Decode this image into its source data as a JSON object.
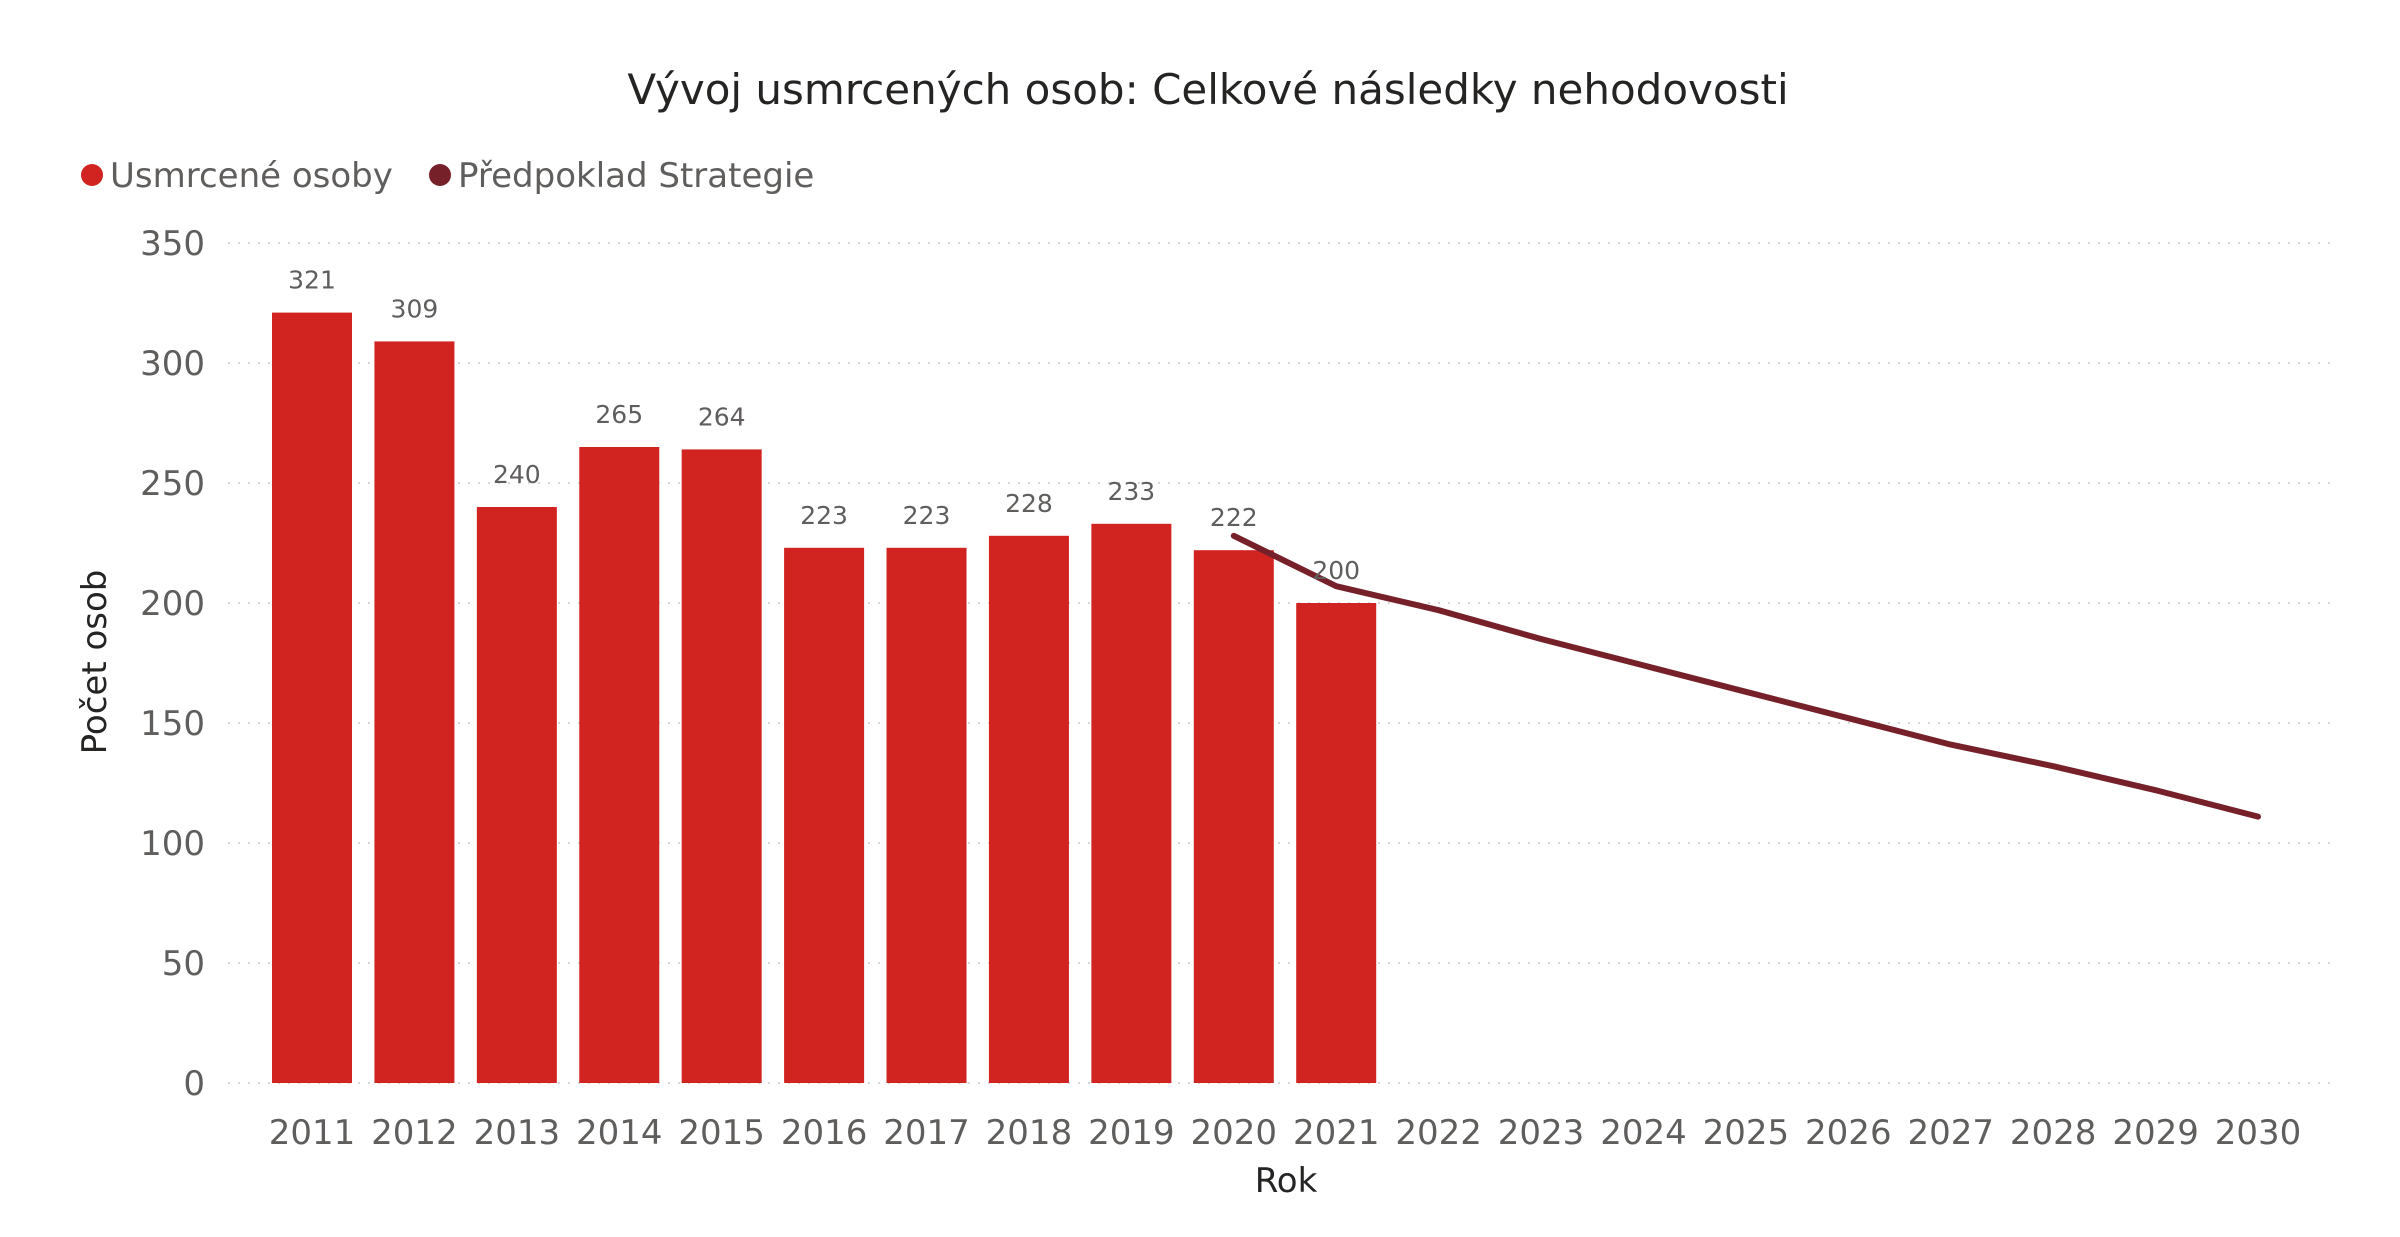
{
  "chart_data": {
    "type": "bar",
    "title": "Vývoj usmrcených osob: Celkové následky nehodovosti",
    "xlabel": "Rok",
    "ylabel": "Počet osob",
    "ylim": [
      0,
      350
    ],
    "yticks": [
      0,
      50,
      100,
      150,
      200,
      250,
      300,
      350
    ],
    "grid": true,
    "legend_placement": "top-left",
    "categories": [
      "2011",
      "2012",
      "2013",
      "2014",
      "2015",
      "2016",
      "2017",
      "2018",
      "2019",
      "2020",
      "2021",
      "2022",
      "2023",
      "2024",
      "2025",
      "2026",
      "2027",
      "2028",
      "2029",
      "2030"
    ],
    "series": [
      {
        "name": "Usmrcené osoby",
        "type": "bar",
        "color": "#d12421",
        "values": [
          321,
          309,
          240,
          265,
          264,
          223,
          223,
          228,
          233,
          222,
          200,
          null,
          null,
          null,
          null,
          null,
          null,
          null,
          null,
          null
        ]
      },
      {
        "name": "Předpoklad Strategie",
        "type": "line",
        "color": "#76212a",
        "values": [
          null,
          null,
          null,
          null,
          null,
          null,
          null,
          null,
          null,
          228,
          207,
          197,
          185,
          174,
          163,
          152,
          141,
          132,
          122,
          111
        ]
      }
    ]
  }
}
